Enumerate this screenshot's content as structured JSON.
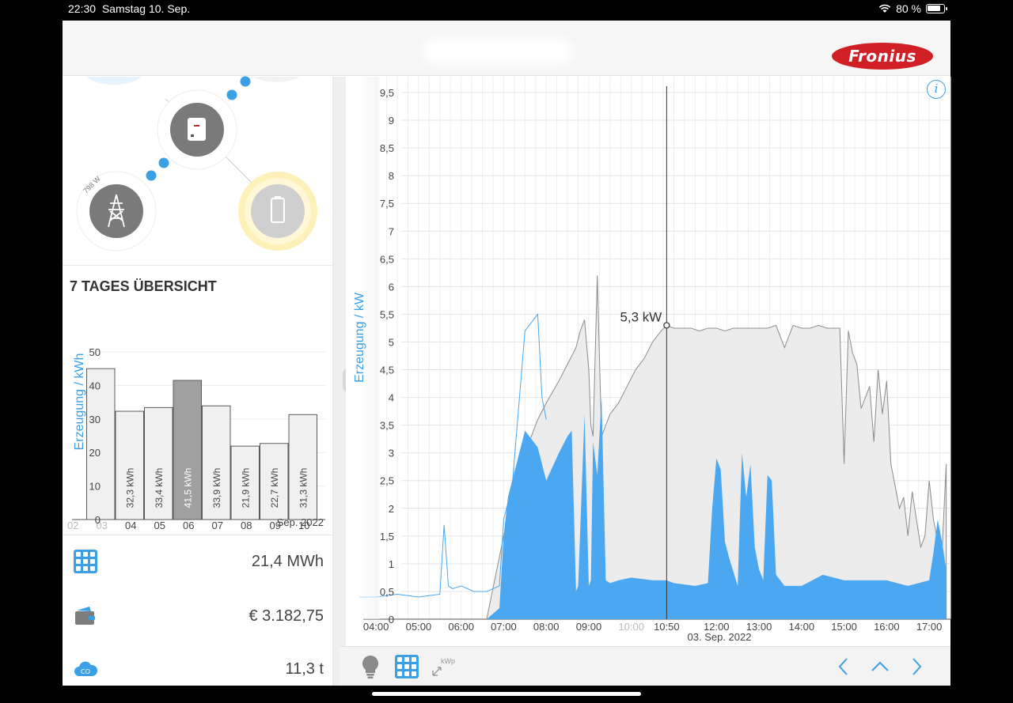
{
  "status_bar": {
    "time": "22:30",
    "date": "Samstag 10. Sep.",
    "battery": "80 %"
  },
  "header": {
    "logo_text": "Fronius"
  },
  "flow": {
    "grid_power": "798 W"
  },
  "week": {
    "title": "7 TAGES ÜBERSICHT",
    "ylabel": "Erzeugung / kWh",
    "yticks": [
      "0",
      "10",
      "20",
      "30",
      "40",
      "50"
    ],
    "month_label": "Sep. 2022"
  },
  "stats": {
    "energy_total": "21,4 MWh",
    "earnings": "€ 3.182,75",
    "co2": "11,3 t"
  },
  "main": {
    "ylabel": "Erzeugung / kW",
    "date_label": "03. Sep. 2022",
    "cursor_time": "10:50",
    "cursor_value": "5,3 kW",
    "info": "i"
  },
  "toolbar": {
    "kwp_label": "kWp"
  },
  "colors": {
    "accent": "#3ba0e6",
    "blue_fill": "#4aa7f0",
    "grey_fill": "#ececec",
    "brand": "#d11f26",
    "selected_bar": "#a0a0a0"
  },
  "chart_data": [
    {
      "type": "bar",
      "title": "7 TAGES ÜBERSICHT",
      "ylabel": "Erzeugung / kWh",
      "ylim": [
        0,
        50
      ],
      "categories": [
        "02",
        "03",
        "04",
        "05",
        "06",
        "07",
        "08",
        "09",
        "10"
      ],
      "values": [
        null,
        45,
        32.3,
        33.4,
        41.5,
        33.9,
        21.9,
        22.7,
        31.3
      ],
      "value_labels": [
        "",
        "",
        "32,3 kWh",
        "33,4 kWh",
        "41,5 kWh",
        "33,9 kWh",
        "21,9 kWh",
        "22,7 kWh",
        "31,3 kWh"
      ],
      "selected": "06",
      "x_sublabel": "Sep. 2022"
    },
    {
      "type": "area",
      "ylabel": "Erzeugung / kW",
      "ylim": [
        0,
        9.5
      ],
      "yticks": [
        "0",
        "0,5",
        "1",
        "1,5",
        "2",
        "2,5",
        "3",
        "3,5",
        "4",
        "4,5",
        "5",
        "5,5",
        "6",
        "6,5",
        "7",
        "7,5",
        "8",
        "8,5",
        "9",
        "9,5"
      ],
      "xticks": [
        "04:00",
        "05:00",
        "06:00",
        "07:00",
        "08:00",
        "09:00",
        "10:00",
        "10:50",
        "12:00",
        "13:00",
        "14:00",
        "15:00",
        "16:00",
        "17:00"
      ],
      "x_label": "03. Sep. 2022",
      "series": [
        {
          "name": "grey_production",
          "x": [
            6.6,
            7.0,
            7.2,
            7.5,
            7.8,
            8.0,
            8.3,
            8.5,
            8.7,
            8.8,
            8.9,
            9.0,
            9.05,
            9.1,
            9.2,
            9.3,
            9.4,
            9.5,
            9.7,
            9.9,
            10.1,
            10.3,
            10.5,
            10.7,
            10.83,
            11.0,
            11.2,
            11.4,
            11.6,
            11.8,
            12.0,
            12.2,
            12.4,
            12.6,
            12.8,
            13.0,
            13.2,
            13.4,
            13.6,
            13.8,
            14.0,
            14.2,
            14.4,
            14.6,
            14.8,
            14.9,
            15.0,
            15.1,
            15.2,
            15.3,
            15.4,
            15.5,
            15.6,
            15.7,
            15.8,
            15.9,
            16.0,
            16.1,
            16.2,
            16.3,
            16.4,
            16.5,
            16.6,
            16.7,
            16.8,
            16.9,
            17.0,
            17.1,
            17.2,
            17.3,
            17.4
          ],
          "y": [
            0,
            1.5,
            2.2,
            3.0,
            3.6,
            3.9,
            4.3,
            4.6,
            4.9,
            5.2,
            5.4,
            4.5,
            3.5,
            3.3,
            6.2,
            3.3,
            3.5,
            3.7,
            3.9,
            4.2,
            4.5,
            4.7,
            5.0,
            5.2,
            5.3,
            5.25,
            5.25,
            5.25,
            5.2,
            5.25,
            5.25,
            5.2,
            5.25,
            5.25,
            5.25,
            5.25,
            5.25,
            5.3,
            4.9,
            5.3,
            5.25,
            5.25,
            5.3,
            5.25,
            5.25,
            5.25,
            2.8,
            5.2,
            4.8,
            4.6,
            3.8,
            4.0,
            4.2,
            3.2,
            4.5,
            3.7,
            4.3,
            2.8,
            2.4,
            2.0,
            2.2,
            1.5,
            2.3,
            1.8,
            1.3,
            1.5,
            2.5,
            1.8,
            1.4,
            1.2,
            2.8
          ]
        },
        {
          "name": "blue_consumption",
          "x": [
            6.6,
            6.9,
            7.0,
            7.1,
            7.3,
            7.5,
            7.8,
            8.0,
            8.3,
            8.5,
            8.6,
            8.7,
            8.75,
            8.9,
            9.0,
            9.05,
            9.1,
            9.2,
            9.3,
            9.4,
            9.5,
            9.7,
            10.0,
            10.5,
            10.83,
            11.0,
            11.5,
            11.8,
            11.9,
            12.0,
            12.1,
            12.2,
            12.3,
            12.5,
            12.6,
            12.7,
            12.8,
            12.9,
            13.0,
            13.1,
            13.2,
            13.3,
            13.4,
            13.5,
            13.6,
            14.0,
            14.5,
            15.0,
            15.5,
            16.0,
            16.5,
            17.0,
            17.1,
            17.2,
            17.3,
            17.4
          ],
          "y": [
            0,
            0.2,
            1.5,
            2.2,
            2.8,
            3.4,
            3.1,
            2.5,
            3.0,
            3.3,
            3.4,
            0.5,
            0.6,
            3.7,
            0.6,
            0.7,
            3.2,
            2.6,
            4.0,
            0.7,
            0.65,
            0.7,
            0.75,
            0.7,
            0.7,
            0.65,
            0.6,
            0.65,
            2.0,
            2.9,
            2.7,
            1.4,
            1.1,
            0.6,
            3.0,
            2.2,
            2.8,
            1.3,
            0.9,
            0.7,
            2.6,
            2.5,
            0.8,
            0.7,
            0.6,
            0.6,
            0.8,
            0.7,
            0.7,
            0.7,
            0.6,
            0.7,
            1.2,
            1.8,
            1.4,
            0.9
          ]
        },
        {
          "name": "thin_line",
          "x": [
            3.6,
            4.0,
            4.5,
            5.0,
            5.5,
            5.6,
            5.7,
            5.8,
            6.0,
            6.3,
            6.6,
            6.9,
            7.0,
            7.2,
            7.5,
            7.6,
            7.8,
            7.9,
            8.0
          ],
          "y": [
            0.4,
            0.4,
            0.45,
            0.4,
            0.45,
            1.7,
            0.6,
            0.55,
            0.6,
            0.5,
            0.5,
            0.6,
            1.8,
            2.4,
            5.2,
            5.3,
            5.5,
            4.0,
            3.6
          ]
        }
      ],
      "cursor": {
        "x": 10.83,
        "y": 5.3
      }
    }
  ]
}
